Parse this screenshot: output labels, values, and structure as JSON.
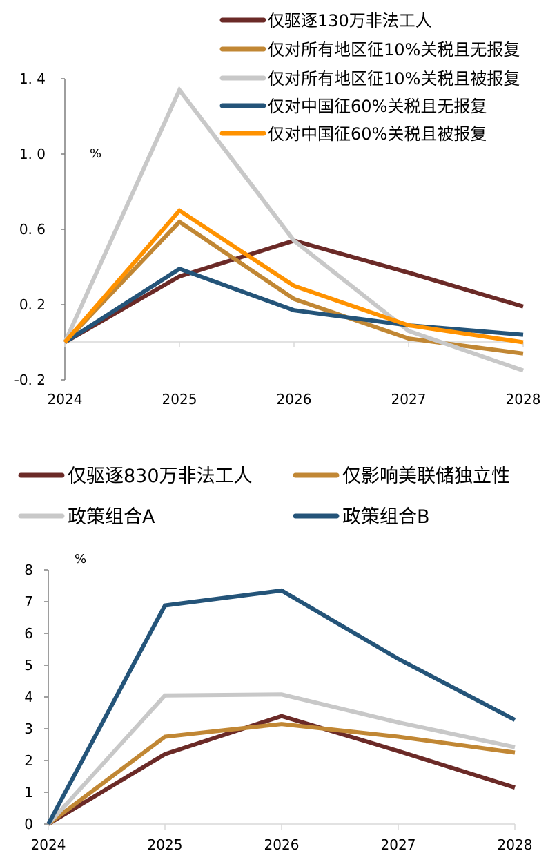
{
  "chart_data": [
    {
      "type": "line",
      "title": "",
      "unit": "%",
      "x": [
        "2024",
        "2025",
        "2026",
        "2027",
        "2028"
      ],
      "y_ticks": [
        "1.4",
        "1.0",
        "0.6",
        "0.2",
        "-0.2"
      ],
      "ylim": [
        -0.2,
        1.4
      ],
      "grid": false,
      "legend_position": "top-right",
      "series": [
        {
          "name": "仅驱逐130万非法工人",
          "color": "#6B2A27",
          "values": [
            0.0,
            0.35,
            0.54,
            0.37,
            0.19
          ]
        },
        {
          "name": "仅对所有地区征10%关税且无报复",
          "color": "#C18734",
          "values": [
            0.0,
            0.64,
            0.23,
            0.02,
            -0.06
          ]
        },
        {
          "name": "仅对所有地区征10%关税且被报复",
          "color": "#C8C8C8",
          "values": [
            0.0,
            1.34,
            0.54,
            0.06,
            -0.15
          ]
        },
        {
          "name": "仅对中国征60%关税且无报复",
          "color": "#245479",
          "values": [
            0.0,
            0.39,
            0.17,
            0.09,
            0.04
          ]
        },
        {
          "name": "仅对中国征60%关税且被报复",
          "color": "#FF9200",
          "values": [
            0.0,
            0.7,
            0.3,
            0.09,
            0.0
          ]
        }
      ]
    },
    {
      "type": "line",
      "title": "",
      "unit": "%",
      "x": [
        "2024",
        "2025",
        "2026",
        "2027",
        "2028"
      ],
      "y_ticks": [
        "0",
        "1",
        "2",
        "3",
        "4",
        "5",
        "6",
        "7",
        "8"
      ],
      "ylim": [
        0,
        8
      ],
      "grid": false,
      "legend_position": "top",
      "series": [
        {
          "name": "仅驱逐830万非法工人",
          "color": "#6B2A27",
          "values": [
            0.0,
            2.2,
            3.4,
            2.3,
            1.15
          ]
        },
        {
          "name": "仅影响美联储独立性",
          "color": "#C18734",
          "values": [
            0.0,
            2.75,
            3.15,
            2.75,
            2.25
          ]
        },
        {
          "name": "政策组合A",
          "color": "#C8C8C8",
          "values": [
            0.0,
            4.05,
            4.08,
            3.2,
            2.42
          ]
        },
        {
          "name": "政策组合B",
          "color": "#245479",
          "values": [
            0.0,
            6.88,
            7.35,
            5.2,
            3.28
          ]
        }
      ]
    }
  ]
}
